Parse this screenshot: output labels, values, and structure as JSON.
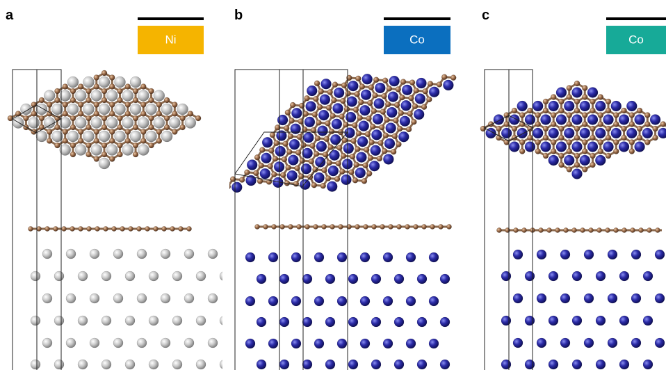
{
  "panels": [
    {
      "letter": "a",
      "label": "Ni"
    },
    {
      "letter": "b",
      "label": "Co"
    },
    {
      "letter": "c",
      "label": "Co"
    }
  ]
}
